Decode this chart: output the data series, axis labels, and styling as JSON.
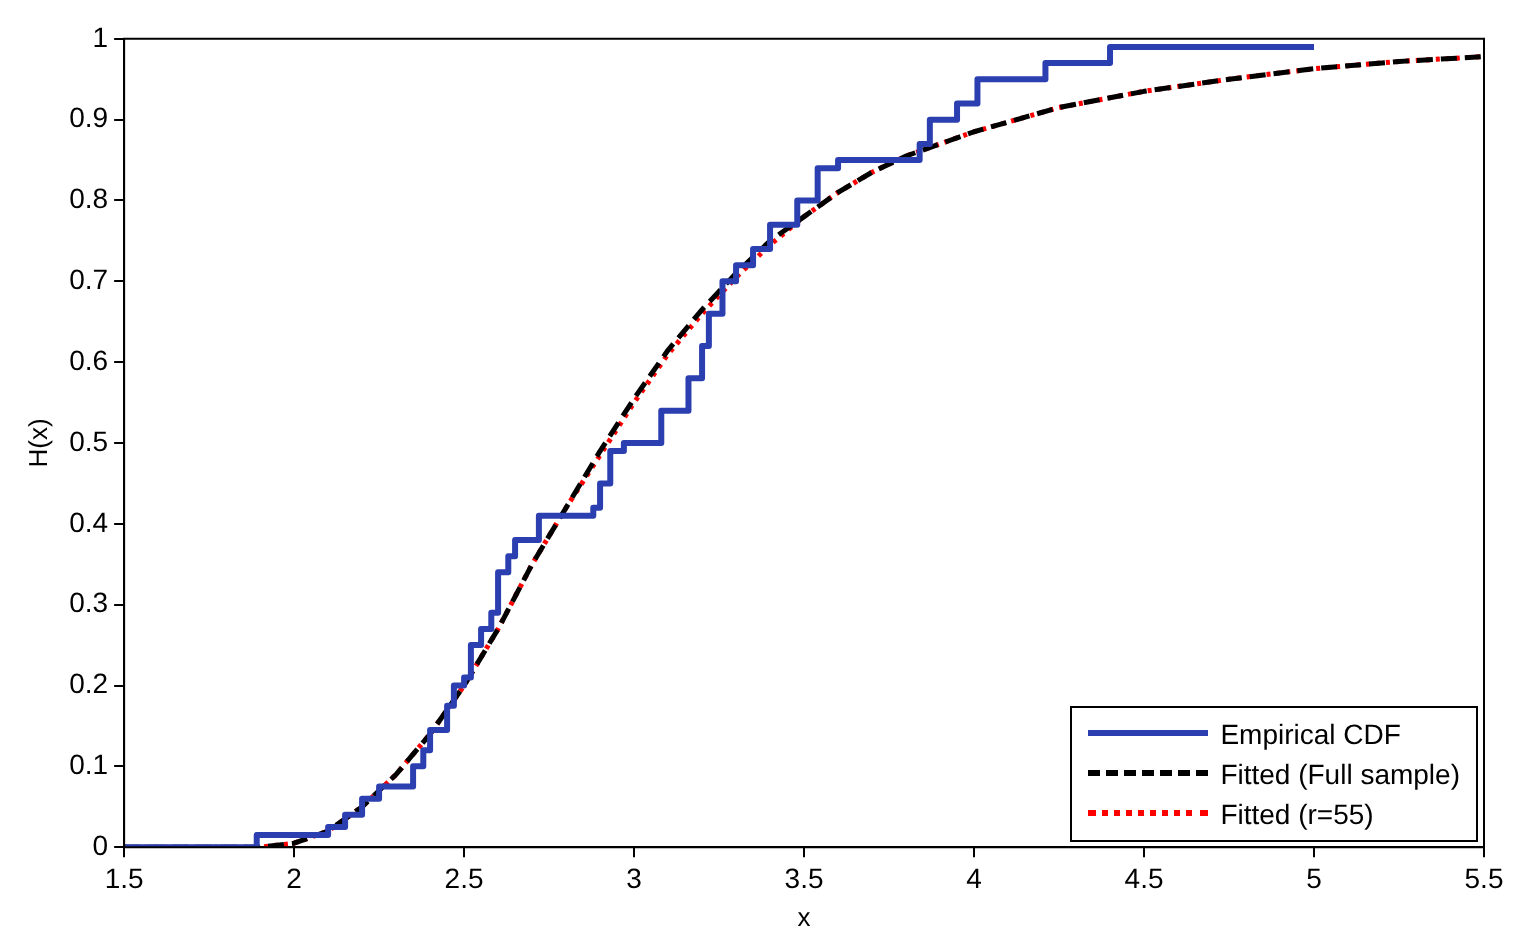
{
  "chart_data": {
    "type": "line",
    "xlabel": "x",
    "ylabel": "H(x)",
    "xlim": [
      1.5,
      5.5
    ],
    "xticks": [
      1.5,
      2,
      2.5,
      3,
      3.5,
      4,
      4.5,
      5,
      5.5
    ],
    "ylim": [
      0,
      1
    ],
    "yticks": [
      0,
      0.1,
      0.2,
      0.3,
      0.4,
      0.5,
      0.6,
      0.7,
      0.8,
      0.9,
      1
    ],
    "grid": false,
    "legend": "bottom right",
    "marker": "none",
    "series": [
      {
        "name": "Empirical CDF",
        "type": "step",
        "color": "#2b3fb0",
        "line_style": "solid",
        "x": [
          1.5,
          1.89,
          2.1,
          2.15,
          2.2,
          2.25,
          2.35,
          2.38,
          2.4,
          2.45,
          2.47,
          2.5,
          2.52,
          2.55,
          2.58,
          2.6,
          2.63,
          2.65,
          2.72,
          2.88,
          2.9,
          2.93,
          2.97,
          3.08,
          3.16,
          3.2,
          3.22,
          3.26,
          3.3,
          3.35,
          3.4,
          3.48,
          3.54,
          3.6,
          3.84,
          3.87,
          3.95,
          4.01,
          4.21,
          4.4,
          5.0
        ],
        "values": [
          0,
          0.015,
          0.025,
          0.04,
          0.06,
          0.075,
          0.1,
          0.12,
          0.145,
          0.175,
          0.2,
          0.21,
          0.25,
          0.27,
          0.29,
          0.34,
          0.36,
          0.38,
          0.41,
          0.42,
          0.45,
          0.49,
          0.5,
          0.54,
          0.58,
          0.62,
          0.66,
          0.7,
          0.72,
          0.74,
          0.77,
          0.8,
          0.84,
          0.85,
          0.87,
          0.9,
          0.92,
          0.95,
          0.97,
          0.99,
          0.99
        ]
      },
      {
        "name": "Fitted (Full sample)",
        "type": "line",
        "color": "#000000",
        "line_style": "dashed",
        "x": [
          1.5,
          1.9,
          2.0,
          2.1,
          2.2,
          2.3,
          2.4,
          2.5,
          2.6,
          2.7,
          2.8,
          2.9,
          3.0,
          3.1,
          3.2,
          3.3,
          3.4,
          3.5,
          3.6,
          3.7,
          3.8,
          3.9,
          4.0,
          4.25,
          4.5,
          4.75,
          5.0,
          5.25,
          5.5
        ],
        "values": [
          0,
          0,
          0.005,
          0.02,
          0.05,
          0.09,
          0.14,
          0.2,
          0.27,
          0.35,
          0.42,
          0.49,
          0.555,
          0.615,
          0.665,
          0.71,
          0.75,
          0.78,
          0.81,
          0.835,
          0.855,
          0.87,
          0.885,
          0.915,
          0.935,
          0.95,
          0.963,
          0.972,
          0.978
        ]
      },
      {
        "name": "Fitted (r=55)",
        "type": "line",
        "color": "#ff0000",
        "line_style": "dotted",
        "x": [
          1.5,
          1.9,
          2.0,
          2.1,
          2.2,
          2.3,
          2.4,
          2.5,
          2.6,
          2.7,
          2.8,
          2.9,
          3.0,
          3.1,
          3.2,
          3.3,
          3.4,
          3.5,
          3.6,
          3.7,
          3.8,
          3.9,
          4.0,
          4.25,
          4.5,
          4.75,
          5.0,
          5.25,
          5.5
        ],
        "values": [
          0,
          0,
          0.005,
          0.02,
          0.05,
          0.09,
          0.14,
          0.2,
          0.27,
          0.35,
          0.42,
          0.485,
          0.55,
          0.61,
          0.66,
          0.705,
          0.745,
          0.78,
          0.81,
          0.835,
          0.855,
          0.87,
          0.885,
          0.915,
          0.935,
          0.95,
          0.963,
          0.972,
          0.978
        ]
      }
    ]
  }
}
